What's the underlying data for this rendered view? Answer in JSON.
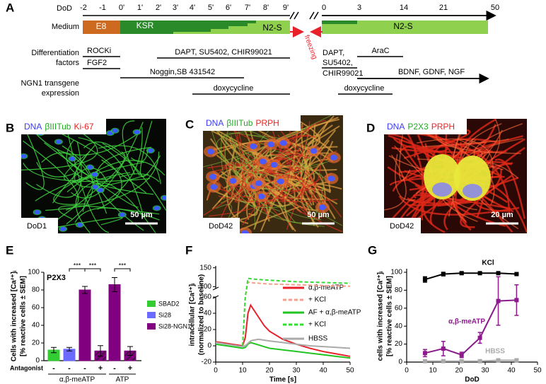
{
  "timeline": {
    "panel": "A",
    "dod_label": "DoD",
    "dod_ticks": [
      "-2",
      "-1",
      "0'",
      "1'",
      "2'",
      "3'",
      "4'",
      "5'",
      "6'",
      "7'",
      "8'",
      "9'",
      "0",
      "3",
      "14",
      "21",
      "50"
    ],
    "medium_label": "Medium",
    "media": [
      "E8",
      "KSR",
      "N2-S",
      "N2-S"
    ],
    "freezing": "freezing",
    "factors_label": [
      "Differentiation",
      "factors"
    ],
    "factors": [
      "ROCKi",
      "FGF2",
      "DAPT, SU5402, CHIR99021",
      "Noggin,SB 431542",
      "DAPT,",
      "SU5402,",
      "CHIR99021",
      "AraC",
      "BDNF, GDNF, NGF"
    ],
    "ngn1_label": [
      "NGN1 transgene",
      "expression"
    ],
    "ngn1": [
      "doxycycline",
      "doxycycline"
    ]
  },
  "images": [
    {
      "panel": "B",
      "stains": [
        {
          "name": "DNA",
          "color": "#3a3aff"
        },
        {
          "name": "βIIITub",
          "color": "#22aa22"
        },
        {
          "name": "Ki-67",
          "color": "#ee2222"
        }
      ],
      "scale": "50 µm",
      "day": "DoD1"
    },
    {
      "panel": "C",
      "stains": [
        {
          "name": "DNA",
          "color": "#3a3aff"
        },
        {
          "name": "βIIITub",
          "color": "#22aa22"
        },
        {
          "name": "PRPH",
          "color": "#ee2222"
        }
      ],
      "scale": "50 µm",
      "day": "DoD42"
    },
    {
      "panel": "D",
      "stains": [
        {
          "name": "DNA",
          "color": "#3a3aff"
        },
        {
          "name": "P2X3",
          "color": "#22aa22"
        },
        {
          "name": "PRPH",
          "color": "#ee2222"
        }
      ],
      "scale": "20 µm",
      "day": "DoD42"
    }
  ],
  "chart_data": [
    {
      "type": "bar",
      "panel": "E",
      "title": "P2X3",
      "ylabel": [
        "Cells with increased [Ca²⁺]ᵢ",
        "[% reactive cells ± SEM]"
      ],
      "ylim": [
        0,
        100
      ],
      "yticks": [
        0,
        20,
        40,
        60,
        80,
        100
      ],
      "antagonist_label": "Antagonist",
      "groups": [
        {
          "name": "α,β-meATP",
          "antagonist": [
            "-",
            "-",
            "-",
            "+"
          ],
          "values": [
            12,
            13,
            80,
            11
          ],
          "errors": [
            3,
            2,
            4,
            6
          ],
          "colors": [
            "#33cc33",
            "#6b6bff",
            "#800080",
            "#800080"
          ],
          "hatched": [
            false,
            false,
            false,
            true
          ]
        },
        {
          "name": "ATP",
          "antagonist": [
            "-",
            "+"
          ],
          "values": [
            86,
            11
          ],
          "errors": [
            8,
            5
          ],
          "colors": [
            "#800080",
            "#800080"
          ],
          "hatched": [
            false,
            true
          ]
        }
      ],
      "legend": [
        {
          "name": "SBAD2",
          "color": "#33cc33"
        },
        {
          "name": "Si28",
          "color": "#6b6bff"
        },
        {
          "name": "Si28-NGN1",
          "color": "#800080"
        }
      ],
      "annotations": [
        "***",
        "***",
        "***"
      ]
    },
    {
      "type": "line",
      "panel": "F",
      "xlabel": "Time [s]",
      "ylabel": [
        "intracellular [Ca²⁺]ᵢ",
        "(normalized to baseline)"
      ],
      "xlim": [
        0,
        50
      ],
      "xticks": [
        0,
        10,
        20,
        30,
        40,
        50
      ],
      "ylim": [
        -20,
        155
      ],
      "yticks": [
        -20,
        0,
        20,
        40,
        60,
        100,
        150
      ],
      "axis_break": [
        60,
        95
      ],
      "x": [
        0,
        2,
        4,
        6,
        8,
        10,
        11,
        12,
        13,
        14,
        16,
        18,
        20,
        25,
        30,
        35,
        40,
        45,
        50
      ],
      "series": [
        {
          "name": "α,β-meATP",
          "color": "#e8202a",
          "dashed": false,
          "values": [
            5,
            4,
            3,
            2,
            1,
            0,
            10,
            40,
            50,
            45,
            35,
            25,
            18,
            8,
            2,
            -3,
            -7,
            -10,
            -13
          ]
        },
        {
          "name": "+ KCl",
          "color": "#f4a090",
          "dashed": true,
          "values": [
            null,
            null,
            null,
            null,
            null,
            0,
            60,
            112,
            111,
            110,
            109,
            108,
            107,
            106,
            105,
            104,
            103,
            102,
            101
          ]
        },
        {
          "name": "AF + α,β-meATP",
          "color": "#22c422",
          "dashed": false,
          "values": [
            2,
            1,
            0,
            -1,
            -2,
            -3,
            -2,
            2,
            4,
            3,
            1,
            -1,
            -3,
            -5,
            -7,
            -9,
            -11,
            -13,
            -15
          ]
        },
        {
          "name": "+ KCl",
          "color": "#33dd33",
          "dashed": true,
          "values": [
            null,
            null,
            null,
            null,
            null,
            0,
            60,
            122,
            121,
            120,
            119,
            118,
            117,
            115,
            113,
            112,
            111,
            110,
            109
          ]
        },
        {
          "name": "HBSS",
          "color": "#aaaaaa",
          "dashed": false,
          "values": [
            4,
            3,
            2,
            1,
            0,
            -1,
            0,
            3,
            6,
            7,
            8,
            7,
            6,
            4,
            2,
            0,
            -1,
            -2,
            -3
          ]
        }
      ]
    },
    {
      "type": "line",
      "panel": "G",
      "xlabel": "DoD",
      "ylabel": [
        "cells with increased [Ca²⁺]ᵢ",
        "[% reactive cells ± SEM]"
      ],
      "xlim": [
        0,
        50
      ],
      "xticks": [
        0,
        10,
        20,
        30,
        40,
        50
      ],
      "ylim": [
        0,
        100
      ],
      "yticks": [
        0,
        20,
        40,
        60,
        80,
        100
      ],
      "x": [
        7,
        14,
        21,
        28,
        35,
        42
      ],
      "series": [
        {
          "name": "KCl",
          "color": "#000000",
          "values": [
            92,
            98,
            99,
            99,
            99,
            98
          ],
          "errors": [
            3,
            2,
            1,
            1,
            1,
            1
          ]
        },
        {
          "name": "α,β-meATP",
          "color": "#8b1a8b",
          "values": [
            10,
            15,
            8,
            27,
            68,
            69
          ],
          "errors": [
            4,
            8,
            3,
            6,
            27,
            17
          ]
        },
        {
          "name": "HBSS",
          "color": "#aaaaaa",
          "values": [
            1,
            1,
            1,
            1,
            2,
            2
          ],
          "errors": [
            0.5,
            0.5,
            0.5,
            0.5,
            0.5,
            0.5
          ]
        }
      ]
    }
  ]
}
